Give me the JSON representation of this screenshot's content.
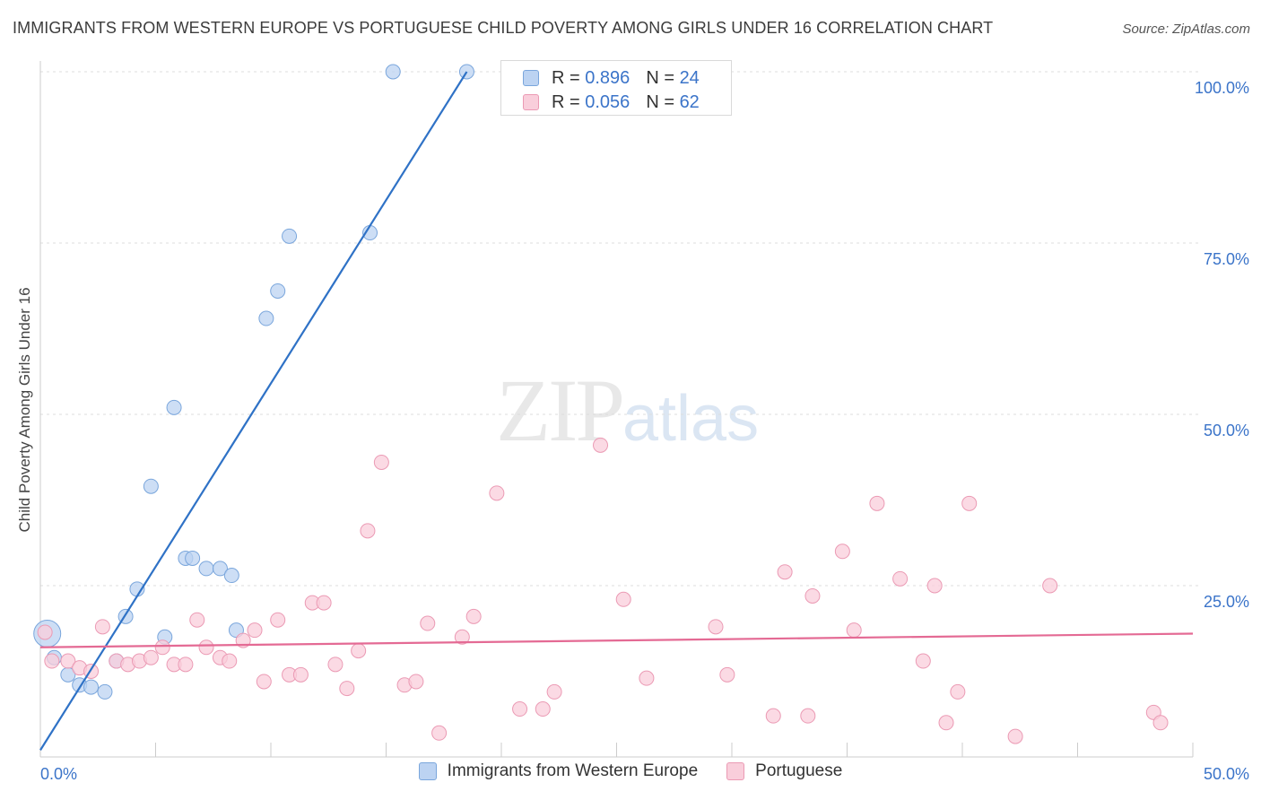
{
  "title": "IMMIGRANTS FROM WESTERN EUROPE VS PORTUGUESE CHILD POVERTY AMONG GIRLS UNDER 16 CORRELATION CHART",
  "source": "Source: ZipAtlas.com",
  "watermark": {
    "zip": "ZIP",
    "atlas": "atlas"
  },
  "legend_top": [
    {
      "r_label": "R =",
      "r_value": "0.896",
      "n_label": "N =",
      "n_value": "24"
    },
    {
      "r_label": "R =",
      "r_value": "0.056",
      "n_label": "N =",
      "n_value": "62"
    }
  ],
  "legend_bottom": [
    "Immigrants from Western Europe",
    "Portuguese"
  ],
  "colors": {
    "blue_fill": "#bcd3f2",
    "blue_stroke": "#7aa6dc",
    "blue_line": "#2f72c6",
    "pink_fill": "#f9cedb",
    "pink_stroke": "#eb9ab4",
    "pink_line": "#e46a94",
    "tick_label": "#3b74c9",
    "grid": "#dddddd"
  },
  "chart_data": {
    "type": "scatter",
    "title": "IMMIGRANTS FROM WESTERN EUROPE VS PORTUGUESE CHILD POVERTY AMONG GIRLS UNDER 16 CORRELATION CHART",
    "xlabel": "",
    "ylabel": "Child Poverty Among Girls Under 16",
    "xlim": [
      0,
      50
    ],
    "ylim": [
      0,
      100
    ],
    "x_tick_labels": [
      "0.0%",
      "50.0%"
    ],
    "y_ticks": [
      25,
      50,
      75,
      100
    ],
    "y_tick_labels": [
      "25.0%",
      "50.0%",
      "75.0%",
      "100.0%"
    ],
    "grid": true,
    "legend_position": "top-center",
    "series": [
      {
        "name": "Immigrants from Western Europe",
        "points": [
          [
            0.3,
            18.0
          ],
          [
            0.6,
            14.5
          ],
          [
            1.2,
            12.0
          ],
          [
            1.7,
            10.5
          ],
          [
            2.2,
            10.2
          ],
          [
            2.8,
            9.5
          ],
          [
            3.3,
            14.0
          ],
          [
            3.7,
            20.5
          ],
          [
            4.2,
            24.5
          ],
          [
            4.8,
            39.5
          ],
          [
            5.4,
            17.5
          ],
          [
            5.8,
            51.0
          ],
          [
            6.3,
            29.0
          ],
          [
            6.6,
            29.0
          ],
          [
            7.2,
            27.5
          ],
          [
            7.8,
            27.5
          ],
          [
            8.3,
            26.5
          ],
          [
            8.5,
            18.5
          ],
          [
            9.8,
            64.0
          ],
          [
            10.3,
            68.0
          ],
          [
            10.8,
            76.0
          ],
          [
            14.3,
            76.5
          ],
          [
            15.3,
            100.0
          ],
          [
            18.5,
            100.0
          ]
        ],
        "trend": {
          "x": [
            0,
            18.5
          ],
          "y": [
            1.0,
            100.0
          ]
        }
      },
      {
        "name": "Portuguese",
        "points": [
          [
            0.5,
            14.0
          ],
          [
            1.2,
            14.0
          ],
          [
            1.7,
            13.0
          ],
          [
            2.2,
            12.5
          ],
          [
            2.7,
            19.0
          ],
          [
            3.3,
            14.0
          ],
          [
            3.8,
            13.5
          ],
          [
            4.3,
            14.0
          ],
          [
            4.8,
            14.5
          ],
          [
            5.3,
            16.0
          ],
          [
            5.8,
            13.5
          ],
          [
            6.3,
            13.5
          ],
          [
            6.8,
            20.0
          ],
          [
            7.2,
            16.0
          ],
          [
            7.8,
            14.5
          ],
          [
            8.2,
            14.0
          ],
          [
            8.8,
            17.0
          ],
          [
            9.3,
            18.5
          ],
          [
            9.7,
            11.0
          ],
          [
            10.3,
            20.0
          ],
          [
            10.8,
            12.0
          ],
          [
            11.3,
            12.0
          ],
          [
            11.8,
            22.5
          ],
          [
            12.3,
            22.5
          ],
          [
            12.8,
            13.5
          ],
          [
            13.3,
            10.0
          ],
          [
            13.8,
            15.5
          ],
          [
            14.2,
            33.0
          ],
          [
            14.8,
            43.0
          ],
          [
            15.8,
            10.5
          ],
          [
            16.3,
            11.0
          ],
          [
            16.8,
            19.5
          ],
          [
            17.3,
            3.5
          ],
          [
            18.3,
            17.5
          ],
          [
            18.8,
            20.5
          ],
          [
            19.8,
            38.5
          ],
          [
            20.8,
            7.0
          ],
          [
            21.8,
            7.0
          ],
          [
            22.3,
            9.5
          ],
          [
            24.3,
            45.5
          ],
          [
            25.3,
            23.0
          ],
          [
            26.3,
            11.5
          ],
          [
            29.3,
            19.0
          ],
          [
            29.8,
            12.0
          ],
          [
            31.8,
            6.0
          ],
          [
            32.3,
            27.0
          ],
          [
            33.3,
            6.0
          ],
          [
            33.5,
            23.5
          ],
          [
            34.8,
            30.0
          ],
          [
            35.3,
            18.5
          ],
          [
            36.3,
            37.0
          ],
          [
            37.3,
            26.0
          ],
          [
            38.3,
            14.0
          ],
          [
            38.8,
            25.0
          ],
          [
            39.3,
            5.0
          ],
          [
            39.8,
            9.5
          ],
          [
            40.3,
            37.0
          ],
          [
            42.3,
            3.0
          ],
          [
            43.8,
            25.0
          ],
          [
            48.3,
            6.5
          ],
          [
            48.6,
            5.0
          ],
          [
            0.2,
            18.2
          ]
        ],
        "trend": {
          "x": [
            0,
            50
          ],
          "y": [
            16.0,
            18.0
          ]
        }
      }
    ]
  }
}
